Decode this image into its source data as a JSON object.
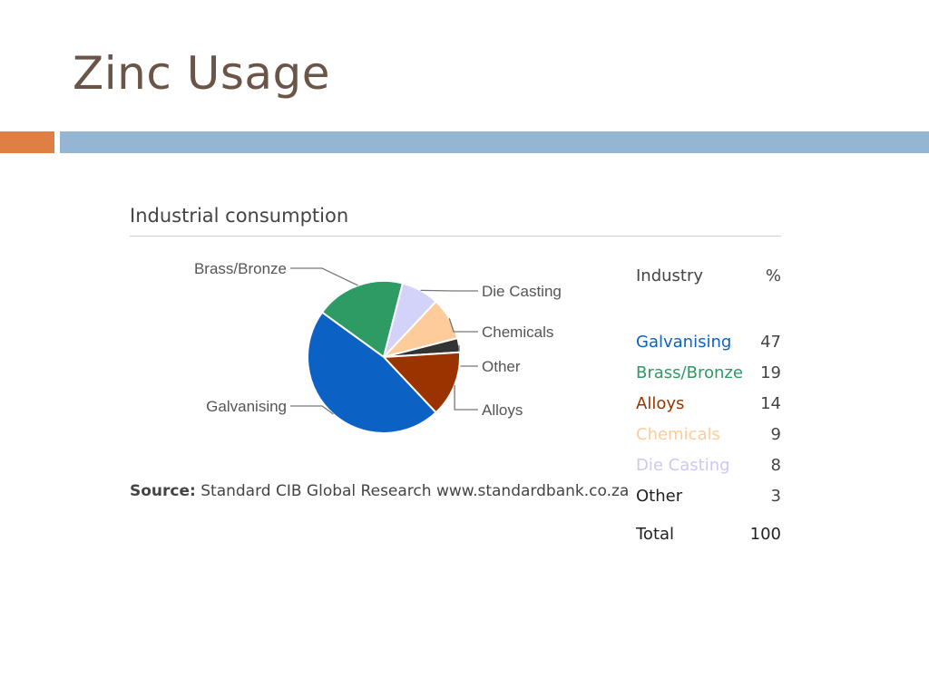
{
  "slide": {
    "title": "Zinc Usage",
    "accent_orange": "#e07f45",
    "accent_blue": "#94b6d2"
  },
  "chart_data": {
    "type": "pie",
    "title": "Industrial consumption",
    "categories": [
      "Galvanising",
      "Brass/Bronze",
      "Die Casting",
      "Chemicals",
      "Other",
      "Alloys"
    ],
    "values": [
      47,
      19,
      8,
      9,
      3,
      14
    ],
    "colors": [
      "#0b62c4",
      "#2e9a64",
      "#d3d3fa",
      "#fecc9b",
      "#333333",
      "#9b3300"
    ],
    "legend_header": {
      "industry": "Industry",
      "percent": "%"
    },
    "table_rows": [
      {
        "name": "Galvanising",
        "value": "47",
        "color": "#0b62c4"
      },
      {
        "name": "Brass/Bronze",
        "value": "19",
        "color": "#2e9a64"
      },
      {
        "name": "Alloys",
        "value": "14",
        "color": "#9b3300"
      },
      {
        "name": "Chemicals",
        "value": "9",
        "color": "#fecc9b"
      },
      {
        "name": "Die Casting",
        "value": "8",
        "color": "#c9c9f5"
      },
      {
        "name": "Other",
        "value": "3",
        "color": "#222222"
      }
    ],
    "total": {
      "label": "Total",
      "value": "100"
    },
    "source": {
      "label": "Source:",
      "text": "Standard CIB Global Research www.standardbank.co.za"
    }
  }
}
